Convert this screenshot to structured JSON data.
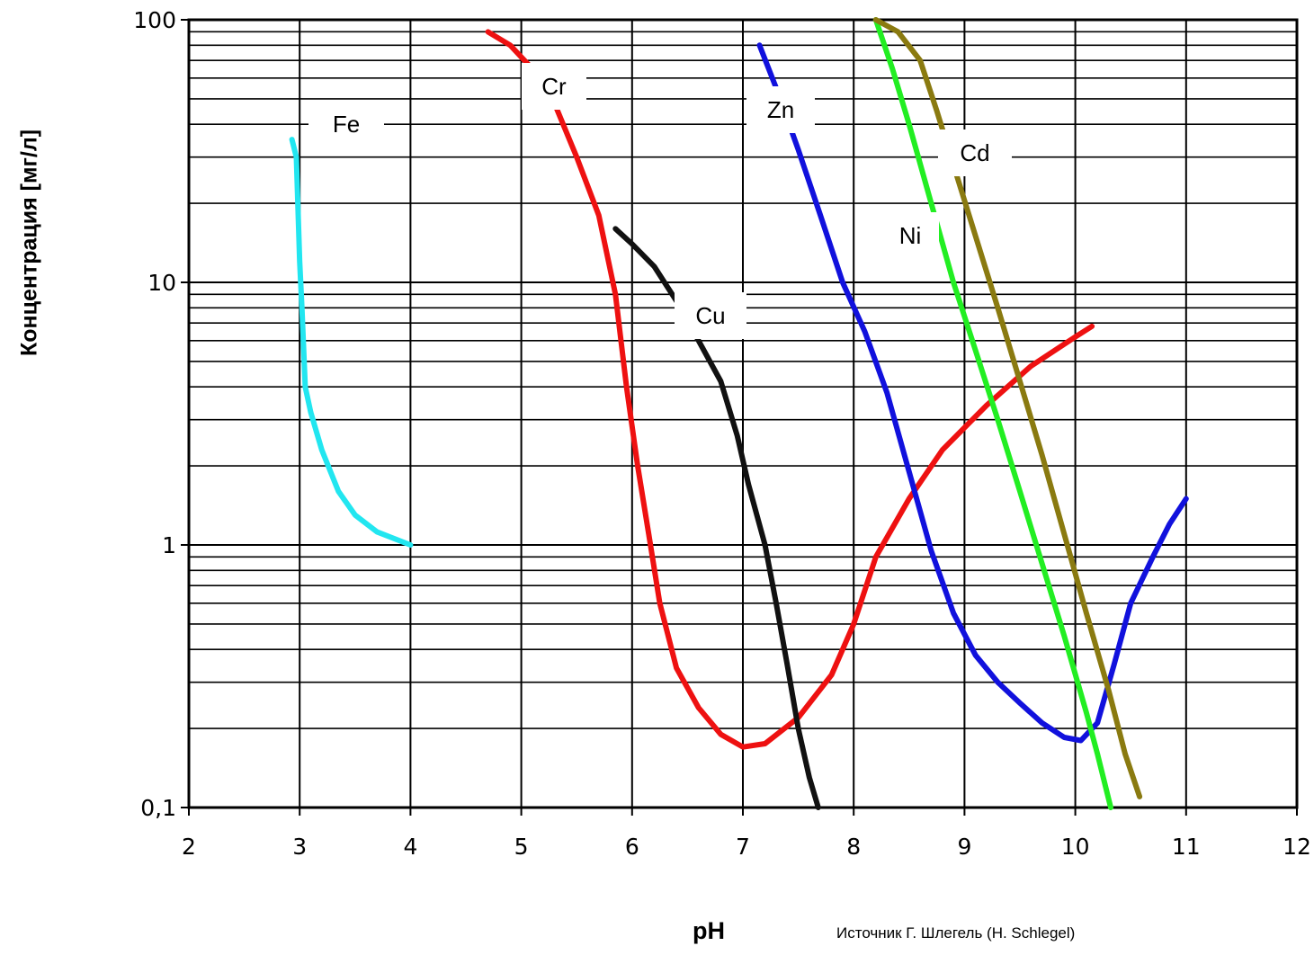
{
  "chart_data": {
    "type": "line",
    "title": "",
    "xlabel": "pH",
    "ylabel": "Концентрация [мг/л]",
    "x_scale": "linear",
    "y_scale": "log",
    "xlim": [
      2,
      12
    ],
    "ylim": [
      0.1,
      100
    ],
    "x_ticks": [
      "2",
      "3",
      "4",
      "5",
      "6",
      "7",
      "8",
      "9",
      "10",
      "11",
      "12"
    ],
    "y_ticks": [
      "0,1",
      "1",
      "10",
      "100"
    ],
    "grid": true,
    "legend": "inline labels",
    "series": [
      {
        "name": "Fe",
        "color": "#22e6f0",
        "points": [
          [
            2.93,
            35
          ],
          [
            2.97,
            30
          ],
          [
            3.0,
            12
          ],
          [
            3.02,
            8
          ],
          [
            3.05,
            4
          ],
          [
            3.1,
            3.2
          ],
          [
            3.2,
            2.3
          ],
          [
            3.35,
            1.6
          ],
          [
            3.5,
            1.3
          ],
          [
            3.7,
            1.12
          ],
          [
            4.0,
            1.0
          ]
        ]
      },
      {
        "name": "Cr",
        "color": "#ee1111",
        "points": [
          [
            4.7,
            90
          ],
          [
            4.9,
            80
          ],
          [
            5.1,
            65
          ],
          [
            5.3,
            48
          ],
          [
            5.5,
            30
          ],
          [
            5.7,
            18
          ],
          [
            5.85,
            9
          ],
          [
            5.95,
            4
          ],
          [
            6.05,
            2
          ],
          [
            6.15,
            1.1
          ],
          [
            6.25,
            0.6
          ],
          [
            6.4,
            0.34
          ],
          [
            6.6,
            0.24
          ],
          [
            6.8,
            0.19
          ],
          [
            7.0,
            0.17
          ],
          [
            7.2,
            0.175
          ],
          [
            7.5,
            0.22
          ],
          [
            7.8,
            0.32
          ],
          [
            8.0,
            0.5
          ],
          [
            8.2,
            0.9
          ],
          [
            8.5,
            1.5
          ],
          [
            8.8,
            2.3
          ],
          [
            9.2,
            3.4
          ],
          [
            9.6,
            4.8
          ],
          [
            10.0,
            6.2
          ],
          [
            10.15,
            6.8
          ]
        ]
      },
      {
        "name": "Cu",
        "color": "#111111",
        "points": [
          [
            5.85,
            16
          ],
          [
            6.0,
            14
          ],
          [
            6.2,
            11.5
          ],
          [
            6.4,
            8.5
          ],
          [
            6.6,
            6
          ],
          [
            6.8,
            4.2
          ],
          [
            6.95,
            2.6
          ],
          [
            7.05,
            1.7
          ],
          [
            7.2,
            1.0
          ],
          [
            7.3,
            0.6
          ],
          [
            7.4,
            0.35
          ],
          [
            7.5,
            0.2
          ],
          [
            7.6,
            0.13
          ],
          [
            7.68,
            0.1
          ]
        ]
      },
      {
        "name": "Zn",
        "color": "#1111dd",
        "points": [
          [
            7.15,
            80
          ],
          [
            7.3,
            55
          ],
          [
            7.5,
            32
          ],
          [
            7.7,
            18
          ],
          [
            7.9,
            10
          ],
          [
            8.1,
            6.5
          ],
          [
            8.3,
            3.8
          ],
          [
            8.5,
            1.9
          ],
          [
            8.7,
            0.95
          ],
          [
            8.9,
            0.55
          ],
          [
            9.1,
            0.38
          ],
          [
            9.3,
            0.3
          ],
          [
            9.5,
            0.25
          ],
          [
            9.7,
            0.21
          ],
          [
            9.9,
            0.185
          ],
          [
            10.05,
            0.18
          ],
          [
            10.2,
            0.21
          ],
          [
            10.35,
            0.35
          ],
          [
            10.5,
            0.6
          ],
          [
            10.7,
            0.9
          ],
          [
            10.85,
            1.2
          ],
          [
            11.0,
            1.5
          ]
        ]
      },
      {
        "name": "Ni",
        "color": "#22ee22",
        "points": [
          [
            8.2,
            100
          ],
          [
            8.35,
            65
          ],
          [
            8.5,
            40
          ],
          [
            8.7,
            20
          ],
          [
            8.9,
            10
          ],
          [
            9.1,
            5.5
          ],
          [
            9.3,
            3
          ],
          [
            9.5,
            1.6
          ],
          [
            9.7,
            0.85
          ],
          [
            9.9,
            0.45
          ],
          [
            10.1,
            0.23
          ],
          [
            10.2,
            0.16
          ],
          [
            10.32,
            0.1
          ]
        ]
      },
      {
        "name": "Cd",
        "color": "#8a7a10",
        "points": [
          [
            8.2,
            100
          ],
          [
            8.4,
            90
          ],
          [
            8.6,
            70
          ],
          [
            8.75,
            45
          ],
          [
            8.9,
            28
          ],
          [
            9.1,
            15
          ],
          [
            9.3,
            8
          ],
          [
            9.5,
            4.2
          ],
          [
            9.7,
            2.2
          ],
          [
            9.9,
            1.1
          ],
          [
            10.1,
            0.55
          ],
          [
            10.3,
            0.28
          ],
          [
            10.45,
            0.16
          ],
          [
            10.58,
            0.11
          ]
        ]
      }
    ],
    "labels": [
      "Fe",
      "Cr",
      "Cu",
      "Zn",
      "Ni",
      "Cd"
    ]
  },
  "caption": {
    "source": "Источник  Г. Шлегель (H. Schlegel)"
  }
}
